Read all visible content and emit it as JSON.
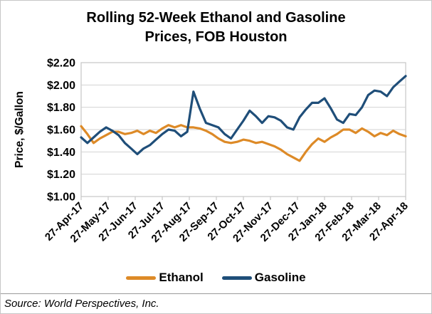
{
  "title_lines": [
    "Rolling 52-Week Ethanol and Gasoline",
    "Prices, FOB Houston"
  ],
  "source_note": "Source: World Perspectives, Inc.",
  "legend": [
    {
      "label": "Ethanol",
      "color": "#dd8a27"
    },
    {
      "label": "Gasoline",
      "color": "#1f4e79"
    }
  ],
  "colors": {
    "ethanol": "#dd8a27",
    "gasoline": "#1f4e79",
    "gridline": "#d2d2d2",
    "plot_border": "#c6c6c6",
    "divider": "#9a9a9a"
  },
  "chart_data": {
    "type": "line",
    "title": "Rolling 52-Week Ethanol and Gasoline Prices, FOB Houston",
    "xlabel": "",
    "ylabel": "Price, $/Gallon",
    "ylim": [
      1.0,
      2.2
    ],
    "ytick_labels": [
      "$2.20",
      "$2.00",
      "$1.80",
      "$1.60",
      "$1.40",
      "$1.20",
      "$1.00"
    ],
    "ytick_values": [
      2.2,
      2.0,
      1.8,
      1.6,
      1.4,
      1.2,
      1.0
    ],
    "x_tick_labels": [
      "27-Apr-17",
      "27-May-17",
      "27-Jun-17",
      "27-Jul-17",
      "27-Aug-17",
      "27-Sep-17",
      "27-Oct-17",
      "27-Nov-17",
      "27-Dec-17",
      "27-Jan-18",
      "27-Feb-18",
      "27-Mar-18",
      "27-Apr-18"
    ],
    "x_frequency": "weekly",
    "grid": true,
    "legend_position": "bottom",
    "series": [
      {
        "name": "Ethanol",
        "color": "#dd8a27",
        "values": [
          1.63,
          1.56,
          1.48,
          1.52,
          1.55,
          1.58,
          1.58,
          1.56,
          1.57,
          1.59,
          1.56,
          1.59,
          1.57,
          1.61,
          1.64,
          1.62,
          1.64,
          1.62,
          1.62,
          1.61,
          1.59,
          1.56,
          1.52,
          1.49,
          1.48,
          1.49,
          1.51,
          1.5,
          1.48,
          1.49,
          1.47,
          1.45,
          1.42,
          1.38,
          1.35,
          1.32,
          1.4,
          1.47,
          1.52,
          1.49,
          1.53,
          1.56,
          1.6,
          1.6,
          1.57,
          1.61,
          1.58,
          1.54,
          1.57,
          1.55,
          1.59,
          1.56,
          1.54
        ]
      },
      {
        "name": "Gasoline",
        "color": "#1f4e79",
        "values": [
          1.53,
          1.48,
          1.53,
          1.58,
          1.62,
          1.59,
          1.55,
          1.48,
          1.43,
          1.38,
          1.43,
          1.46,
          1.51,
          1.56,
          1.6,
          1.59,
          1.54,
          1.58,
          1.94,
          1.79,
          1.66,
          1.64,
          1.62,
          1.56,
          1.52,
          1.6,
          1.68,
          1.77,
          1.72,
          1.66,
          1.72,
          1.71,
          1.68,
          1.62,
          1.6,
          1.71,
          1.78,
          1.84,
          1.84,
          1.88,
          1.79,
          1.69,
          1.66,
          1.74,
          1.73,
          1.8,
          1.91,
          1.95,
          1.94,
          1.9,
          1.98,
          2.03,
          2.08
        ]
      }
    ]
  }
}
